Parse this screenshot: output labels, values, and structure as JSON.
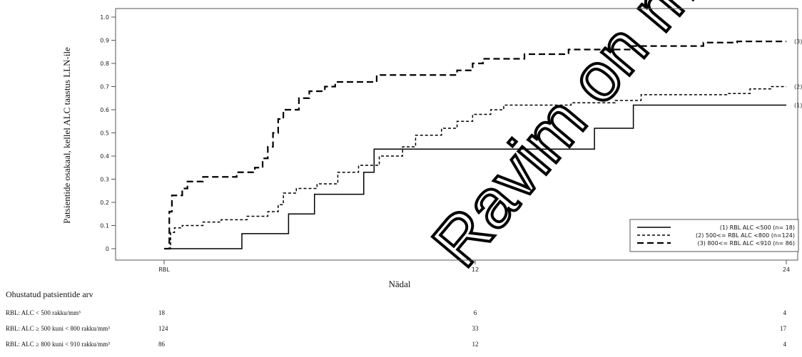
{
  "chart_data": {
    "type": "line",
    "step": true,
    "xlabel": "Nädal",
    "ylabel": "Patsientide osakaal, kellel ALC taastus LLN-ile",
    "ylim": [
      0,
      1.0
    ],
    "xlim": [
      0,
      24
    ],
    "y_ticks": [
      "0",
      "0.1",
      "0.2",
      "0.3",
      "0.4",
      "0.5",
      "0.6",
      "0.7",
      "0.8",
      "0.9",
      "1.0"
    ],
    "x_ticks": [
      {
        "v": 0,
        "label": "RBL"
      },
      {
        "v": 12,
        "label": "12"
      },
      {
        "v": 24,
        "label": "24"
      }
    ],
    "series": [
      {
        "name": "(1) RBL ALC <500 (n= 18)",
        "end_label": "(1)",
        "style": "solid",
        "points": [
          [
            0,
            0
          ],
          [
            3.0,
            0
          ],
          [
            3.0,
            0.065
          ],
          [
            4.8,
            0.065
          ],
          [
            4.8,
            0.15
          ],
          [
            5.8,
            0.15
          ],
          [
            5.8,
            0.235
          ],
          [
            7.7,
            0.235
          ],
          [
            7.7,
            0.33
          ],
          [
            8.1,
            0.33
          ],
          [
            8.1,
            0.43
          ],
          [
            16.6,
            0.43
          ],
          [
            16.6,
            0.52
          ],
          [
            18.1,
            0.52
          ],
          [
            18.1,
            0.62
          ],
          [
            24,
            0.62
          ]
        ]
      },
      {
        "name": "(2) 500<= RBL ALC <800 (n=124)",
        "end_label": "(2)",
        "style": "short-dash",
        "points": [
          [
            0,
            0
          ],
          [
            0.25,
            0
          ],
          [
            0.25,
            0.07
          ],
          [
            0.4,
            0.09
          ],
          [
            0.7,
            0.1
          ],
          [
            1.5,
            0.115
          ],
          [
            2.2,
            0.125
          ],
          [
            3.2,
            0.14
          ],
          [
            4.0,
            0.16
          ],
          [
            4.4,
            0.19
          ],
          [
            4.6,
            0.24
          ],
          [
            5.1,
            0.26
          ],
          [
            5.9,
            0.28
          ],
          [
            6.7,
            0.33
          ],
          [
            7.5,
            0.36
          ],
          [
            8.3,
            0.4
          ],
          [
            9.2,
            0.44
          ],
          [
            9.7,
            0.49
          ],
          [
            10.7,
            0.52
          ],
          [
            11.3,
            0.55
          ],
          [
            11.9,
            0.58
          ],
          [
            12.6,
            0.6
          ],
          [
            13.1,
            0.62
          ],
          [
            15.7,
            0.63
          ],
          [
            17.4,
            0.64
          ],
          [
            18.4,
            0.665
          ],
          [
            21.7,
            0.67
          ],
          [
            22.6,
            0.69
          ],
          [
            23.4,
            0.7
          ],
          [
            24,
            0.7
          ]
        ]
      },
      {
        "name": "(3) 800<= RBL ALC <910 (n= 86)",
        "end_label": "(3)",
        "style": "long-dash",
        "points": [
          [
            0,
            0
          ],
          [
            0.2,
            0
          ],
          [
            0.2,
            0.16
          ],
          [
            0.3,
            0.23
          ],
          [
            0.7,
            0.26
          ],
          [
            0.9,
            0.29
          ],
          [
            1.5,
            0.31
          ],
          [
            2.8,
            0.33
          ],
          [
            3.5,
            0.35
          ],
          [
            3.8,
            0.39
          ],
          [
            4.0,
            0.44
          ],
          [
            4.2,
            0.5
          ],
          [
            4.4,
            0.56
          ],
          [
            4.6,
            0.6
          ],
          [
            5.2,
            0.65
          ],
          [
            5.6,
            0.68
          ],
          [
            6.2,
            0.7
          ],
          [
            6.6,
            0.72
          ],
          [
            8.2,
            0.75
          ],
          [
            11.3,
            0.77
          ],
          [
            11.9,
            0.8
          ],
          [
            12.3,
            0.82
          ],
          [
            13.9,
            0.84
          ],
          [
            15.6,
            0.86
          ],
          [
            18.0,
            0.875
          ],
          [
            20.8,
            0.89
          ],
          [
            22.1,
            0.895
          ],
          [
            24,
            0.895
          ]
        ]
      }
    ]
  },
  "risk_table": {
    "title": "Ohustatud patsientide arv",
    "rows": [
      {
        "label": "RBL: ALC < 500 rakku/mm³",
        "values": [
          "18",
          "6",
          "4"
        ]
      },
      {
        "label": "RBL: ALC ≥ 500 kuni < 800 rakku/mm³",
        "values": [
          "124",
          "33",
          "17"
        ]
      },
      {
        "label": "RBL: ALC ≥ 800 kuni < 910 rakku/mm³",
        "values": [
          "86",
          "12",
          "4"
        ]
      }
    ]
  },
  "watermark": "Ravim on müügiloa lõppenud"
}
